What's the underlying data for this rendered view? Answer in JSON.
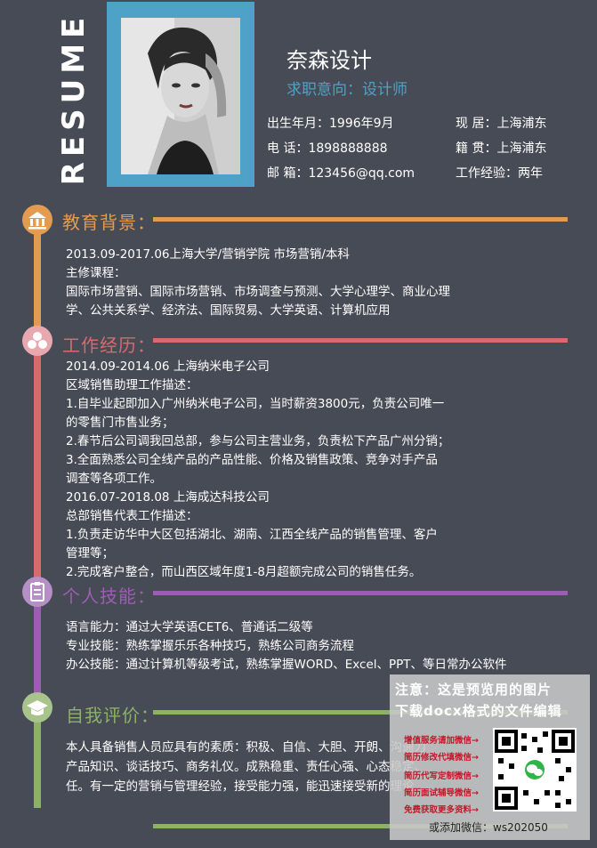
{
  "resume_vertical": "RESUME",
  "header": {
    "name": "奈森设计",
    "intent": "求职意向：设计师",
    "info": [
      [
        "出生年月：1996年9月",
        "现      居：上海浦东"
      ],
      [
        "电      话：1898888888",
        "籍      贯：上海浦东"
      ],
      [
        "邮      箱：123456@qq.com",
        "工作经验：两年"
      ]
    ]
  },
  "colors": {
    "background": "#474b55",
    "education": "#e29b4f",
    "work": "#d96a6b",
    "skills": "#9a5fb0",
    "self": "#8db06a",
    "accent_blue": "#4ea2c8"
  },
  "sections": {
    "education": {
      "title": "教育背景：",
      "icon": "school-icon",
      "lines": [
        "2013.09-2017.06上海大学/营销学院      市场营销/本科",
        "主修课程：",
        "国际市场营销、国际市场营销、市场调查与预测、大学心理学、商业心理",
        "学、公共关系学、经济法、国际贸易、大学英语、计算机应用"
      ]
    },
    "work": {
      "title": "工作经历：",
      "icon": "people-icon",
      "lines": [
        "2014.09-2014.06       上海纳米电子公司",
        "区域销售助理工作描述：",
        "1.自毕业起即加入广州纳米电子公司，当时薪资3800元，负责公司唯一",
        "的零售门市售业务；",
        "2.春节后公司调我回总部，参与公司主营业务，负责松下产品广州分销；",
        "3.全面熟悉公司全线产品的产品性能、价格及销售政策、竞争对手产品",
        "调查等各项工作。",
        "2016.07-2018.08       上海成达科技公司",
        "总部销售代表工作描述：",
        "1.负责走访华中大区包括湖北、湖南、江西全线产品的销售管理、客户",
        "管理等；",
        "2.完成客户整合，而山西区域年度1-8月超额完成公司的销售任务。"
      ]
    },
    "skills": {
      "title": "个人技能：",
      "icon": "clipboard-icon",
      "lines": [
        "语言能力：通过大学英语CET6、普通话二级等",
        "专业技能：熟练掌握乐乐各种技巧，熟练公司商务流程",
        "办公技能：通过计算机等级考试，熟练掌握WORD、Excel、PPT、等日常办公软件"
      ]
    },
    "self": {
      "title": "自我评价：",
      "icon": "graduation-cap-icon",
      "lines": [
        "本人具备销售人员应具有的素质：积极、自信、大胆、开朗、沟通力",
        "产品知识、谈话技巧、商务礼仪。成熟稳重、责任心强、心态稳定、",
        "任。有一定的营销与管理经验，接受能力强，能迅速接受新的理论，"
      ]
    }
  },
  "watermark": {
    "title1": "注意：这是预览用的图片",
    "title2": "下载docx格式的文件编辑",
    "items": [
      "增值服务请加微信→",
      "简历修改代填微信→",
      "简历代写定制微信→",
      "简历面试辅导微信→",
      "免费获取更多资料→"
    ],
    "wechat": "或添加微信：ws202050"
  }
}
